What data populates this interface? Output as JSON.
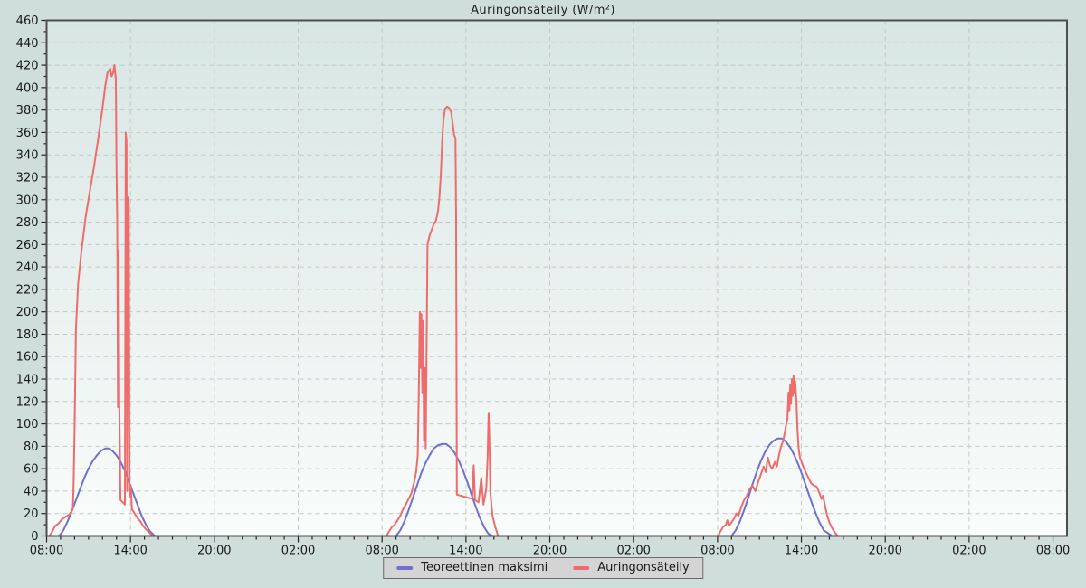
{
  "title": "Auringonsäteily (W/m²)",
  "colors": {
    "page_bg": "#cfdeda",
    "plot_bg_top": "#d8e6e3",
    "plot_bg_bottom": "#f9fcfb",
    "frame": "#4e4e4e",
    "grid": "#c4c8c7",
    "tick_text": "#1a1a1a",
    "legend_bg": "#d4d4d4",
    "legend_border": "#6a6a6a",
    "series_blue": "#7070d2",
    "series_red": "#ee6c6c"
  },
  "legend": {
    "items": [
      {
        "label": "Teoreettinen maksimi",
        "color": "#7070d2"
      },
      {
        "label": "Auringonsäteily",
        "color": "#ee6c6c"
      }
    ]
  },
  "chart_data": {
    "type": "line",
    "title": "Auringonsäteily (W/m²)",
    "grid": "dashed",
    "legend_position": "bottom",
    "x_axis": {
      "kind": "time",
      "range_hours": [
        0,
        73
      ],
      "major_tick_every_hours": 6,
      "minor_tick_every_hours": 1,
      "ticks": [
        {
          "hour": 0,
          "label": "08:00"
        },
        {
          "hour": 6,
          "label": "14:00"
        },
        {
          "hour": 12,
          "label": "20:00"
        },
        {
          "hour": 18,
          "label": "02:00"
        },
        {
          "hour": 24,
          "label": "08:00"
        },
        {
          "hour": 30,
          "label": "14:00"
        },
        {
          "hour": 36,
          "label": "20:00"
        },
        {
          "hour": 42,
          "label": "02:00"
        },
        {
          "hour": 48,
          "label": "08:00"
        },
        {
          "hour": 54,
          "label": "14:00"
        },
        {
          "hour": 60,
          "label": "20:00"
        },
        {
          "hour": 66,
          "label": "02:00"
        },
        {
          "hour": 72,
          "label": "08:00"
        }
      ]
    },
    "y_axis": {
      "unit": "W/m²",
      "range": [
        0,
        460
      ],
      "major_step": 20,
      "minor_step": 10,
      "tick_labels": [
        "0",
        "20",
        "40",
        "60",
        "80",
        "100",
        "120",
        "140",
        "160",
        "180",
        "200",
        "220",
        "240",
        "260",
        "280",
        "300",
        "320",
        "340",
        "360",
        "380",
        "400",
        "420",
        "440",
        "460"
      ]
    },
    "series": [
      {
        "name": "Teoreettinen maksimi",
        "color": "#7070d2",
        "points": [
          [
            0,
            0
          ],
          [
            0.9,
            0
          ],
          [
            1.2,
            5
          ],
          [
            1.5,
            13
          ],
          [
            1.8,
            22
          ],
          [
            2.1,
            32
          ],
          [
            2.4,
            42
          ],
          [
            2.7,
            52
          ],
          [
            3.0,
            60
          ],
          [
            3.3,
            67
          ],
          [
            3.6,
            72
          ],
          [
            3.9,
            76
          ],
          [
            4.2,
            78
          ],
          [
            4.45,
            78
          ],
          [
            4.7,
            76
          ],
          [
            5.0,
            72
          ],
          [
            5.3,
            66
          ],
          [
            5.6,
            58
          ],
          [
            5.9,
            48
          ],
          [
            6.2,
            38
          ],
          [
            6.5,
            28
          ],
          [
            6.8,
            18
          ],
          [
            7.1,
            10
          ],
          [
            7.4,
            4
          ],
          [
            7.75,
            0
          ],
          [
            25.0,
            0
          ],
          [
            25.3,
            5
          ],
          [
            25.6,
            13
          ],
          [
            25.9,
            23
          ],
          [
            26.2,
            34
          ],
          [
            26.5,
            45
          ],
          [
            26.8,
            56
          ],
          [
            27.1,
            65
          ],
          [
            27.4,
            72
          ],
          [
            27.7,
            78
          ],
          [
            28.0,
            81
          ],
          [
            28.3,
            82
          ],
          [
            28.6,
            82
          ],
          [
            28.9,
            79
          ],
          [
            29.2,
            74
          ],
          [
            29.5,
            67
          ],
          [
            29.8,
            58
          ],
          [
            30.1,
            48
          ],
          [
            30.4,
            37
          ],
          [
            30.7,
            26
          ],
          [
            31.0,
            16
          ],
          [
            31.3,
            8
          ],
          [
            31.6,
            2
          ],
          [
            31.9,
            0
          ],
          [
            49.0,
            0
          ],
          [
            49.3,
            5
          ],
          [
            49.6,
            13
          ],
          [
            49.9,
            23
          ],
          [
            50.2,
            34
          ],
          [
            50.5,
            46
          ],
          [
            50.8,
            57
          ],
          [
            51.1,
            67
          ],
          [
            51.4,
            75
          ],
          [
            51.7,
            81
          ],
          [
            52.0,
            85
          ],
          [
            52.3,
            87
          ],
          [
            52.6,
            87
          ],
          [
            52.9,
            84
          ],
          [
            53.2,
            79
          ],
          [
            53.5,
            72
          ],
          [
            53.8,
            63
          ],
          [
            54.1,
            53
          ],
          [
            54.4,
            42
          ],
          [
            54.7,
            31
          ],
          [
            55.0,
            21
          ],
          [
            55.3,
            12
          ],
          [
            55.6,
            5
          ],
          [
            56.2,
            0
          ],
          [
            72.9,
            0
          ]
        ]
      },
      {
        "name": "Auringonsäteily",
        "color": "#ee6c6c",
        "points": [
          [
            0.2,
            0
          ],
          [
            0.45,
            5
          ],
          [
            0.6,
            9
          ],
          [
            0.85,
            11
          ],
          [
            1.1,
            15
          ],
          [
            1.35,
            17
          ],
          [
            1.6,
            19
          ],
          [
            1.75,
            21
          ],
          [
            1.88,
            24
          ],
          [
            1.93,
            45
          ],
          [
            2.0,
            95
          ],
          [
            2.1,
            185
          ],
          [
            2.25,
            225
          ],
          [
            2.5,
            255
          ],
          [
            2.8,
            285
          ],
          [
            3.1,
            308
          ],
          [
            3.4,
            330
          ],
          [
            3.7,
            355
          ],
          [
            4.0,
            382
          ],
          [
            4.2,
            402
          ],
          [
            4.35,
            413
          ],
          [
            4.45,
            415
          ],
          [
            4.55,
            417
          ],
          [
            4.65,
            410
          ],
          [
            4.75,
            413
          ],
          [
            4.85,
            420
          ],
          [
            4.95,
            408
          ],
          [
            5.0,
            330
          ],
          [
            5.05,
            280
          ],
          [
            5.1,
            115
          ],
          [
            5.15,
            255
          ],
          [
            5.2,
            120
          ],
          [
            5.28,
            32
          ],
          [
            5.45,
            30
          ],
          [
            5.6,
            28
          ],
          [
            5.66,
            360
          ],
          [
            5.72,
            352
          ],
          [
            5.76,
            40
          ],
          [
            5.83,
            302
          ],
          [
            5.88,
            295
          ],
          [
            5.93,
            35
          ],
          [
            6.02,
            45
          ],
          [
            6.1,
            24
          ],
          [
            6.3,
            20
          ],
          [
            6.5,
            16
          ],
          [
            6.7,
            13
          ],
          [
            6.9,
            9
          ],
          [
            7.1,
            6
          ],
          [
            7.35,
            3
          ],
          [
            7.6,
            0
          ],
          [
            24.3,
            0
          ],
          [
            24.5,
            4
          ],
          [
            24.7,
            8
          ],
          [
            24.9,
            10
          ],
          [
            25.1,
            14
          ],
          [
            25.3,
            18
          ],
          [
            25.5,
            24
          ],
          [
            25.7,
            28
          ],
          [
            25.9,
            33
          ],
          [
            26.1,
            38
          ],
          [
            26.3,
            48
          ],
          [
            26.45,
            58
          ],
          [
            26.55,
            72
          ],
          [
            26.62,
            125
          ],
          [
            26.7,
            200
          ],
          [
            26.76,
            150
          ],
          [
            26.82,
            198
          ],
          [
            26.88,
            128
          ],
          [
            26.94,
            192
          ],
          [
            27.0,
            85
          ],
          [
            27.06,
            150
          ],
          [
            27.12,
            78
          ],
          [
            27.25,
            260
          ],
          [
            27.4,
            268
          ],
          [
            27.55,
            273
          ],
          [
            27.7,
            278
          ],
          [
            27.85,
            281
          ],
          [
            28.0,
            290
          ],
          [
            28.1,
            302
          ],
          [
            28.2,
            322
          ],
          [
            28.3,
            352
          ],
          [
            28.4,
            372
          ],
          [
            28.5,
            381
          ],
          [
            28.65,
            383
          ],
          [
            28.8,
            382
          ],
          [
            28.95,
            378
          ],
          [
            29.05,
            368
          ],
          [
            29.15,
            358
          ],
          [
            29.25,
            355
          ],
          [
            29.3,
            282
          ],
          [
            29.35,
            37
          ],
          [
            29.6,
            36
          ],
          [
            29.9,
            35
          ],
          [
            30.2,
            34
          ],
          [
            30.45,
            33
          ],
          [
            30.55,
            63
          ],
          [
            30.65,
            32
          ],
          [
            30.9,
            30
          ],
          [
            31.1,
            52
          ],
          [
            31.25,
            28
          ],
          [
            31.45,
            42
          ],
          [
            31.55,
            70
          ],
          [
            31.62,
            110
          ],
          [
            31.68,
            85
          ],
          [
            31.75,
            38
          ],
          [
            31.9,
            18
          ],
          [
            32.1,
            8
          ],
          [
            32.3,
            0
          ],
          [
            48.05,
            0
          ],
          [
            48.2,
            4
          ],
          [
            48.4,
            8
          ],
          [
            48.6,
            10
          ],
          [
            48.7,
            14
          ],
          [
            48.8,
            9
          ],
          [
            49.0,
            12
          ],
          [
            49.2,
            16
          ],
          [
            49.35,
            20
          ],
          [
            49.5,
            18
          ],
          [
            49.7,
            26
          ],
          [
            49.9,
            32
          ],
          [
            50.1,
            36
          ],
          [
            50.3,
            42
          ],
          [
            50.5,
            45
          ],
          [
            50.7,
            40
          ],
          [
            50.9,
            48
          ],
          [
            51.1,
            55
          ],
          [
            51.3,
            62
          ],
          [
            51.45,
            57
          ],
          [
            51.6,
            70
          ],
          [
            51.75,
            63
          ],
          [
            51.9,
            60
          ],
          [
            52.1,
            66
          ],
          [
            52.25,
            62
          ],
          [
            52.4,
            72
          ],
          [
            52.55,
            80
          ],
          [
            52.7,
            85
          ],
          [
            52.85,
            95
          ],
          [
            53.0,
            105
          ],
          [
            53.08,
            128
          ],
          [
            53.14,
            112
          ],
          [
            53.2,
            135
          ],
          [
            53.26,
            118
          ],
          [
            53.32,
            140
          ],
          [
            53.38,
            125
          ],
          [
            53.44,
            143
          ],
          [
            53.5,
            128
          ],
          [
            53.56,
            138
          ],
          [
            53.65,
            120
          ],
          [
            53.72,
            95
          ],
          [
            53.8,
            78
          ],
          [
            53.9,
            70
          ],
          [
            54.1,
            63
          ],
          [
            54.3,
            57
          ],
          [
            54.5,
            52
          ],
          [
            54.7,
            47
          ],
          [
            54.9,
            45
          ],
          [
            55.1,
            44
          ],
          [
            55.3,
            38
          ],
          [
            55.45,
            33
          ],
          [
            55.55,
            36
          ],
          [
            55.7,
            26
          ],
          [
            55.85,
            18
          ],
          [
            56.0,
            12
          ],
          [
            56.2,
            7
          ],
          [
            56.4,
            3
          ],
          [
            56.6,
            0
          ],
          [
            72.9,
            0
          ]
        ]
      }
    ]
  }
}
